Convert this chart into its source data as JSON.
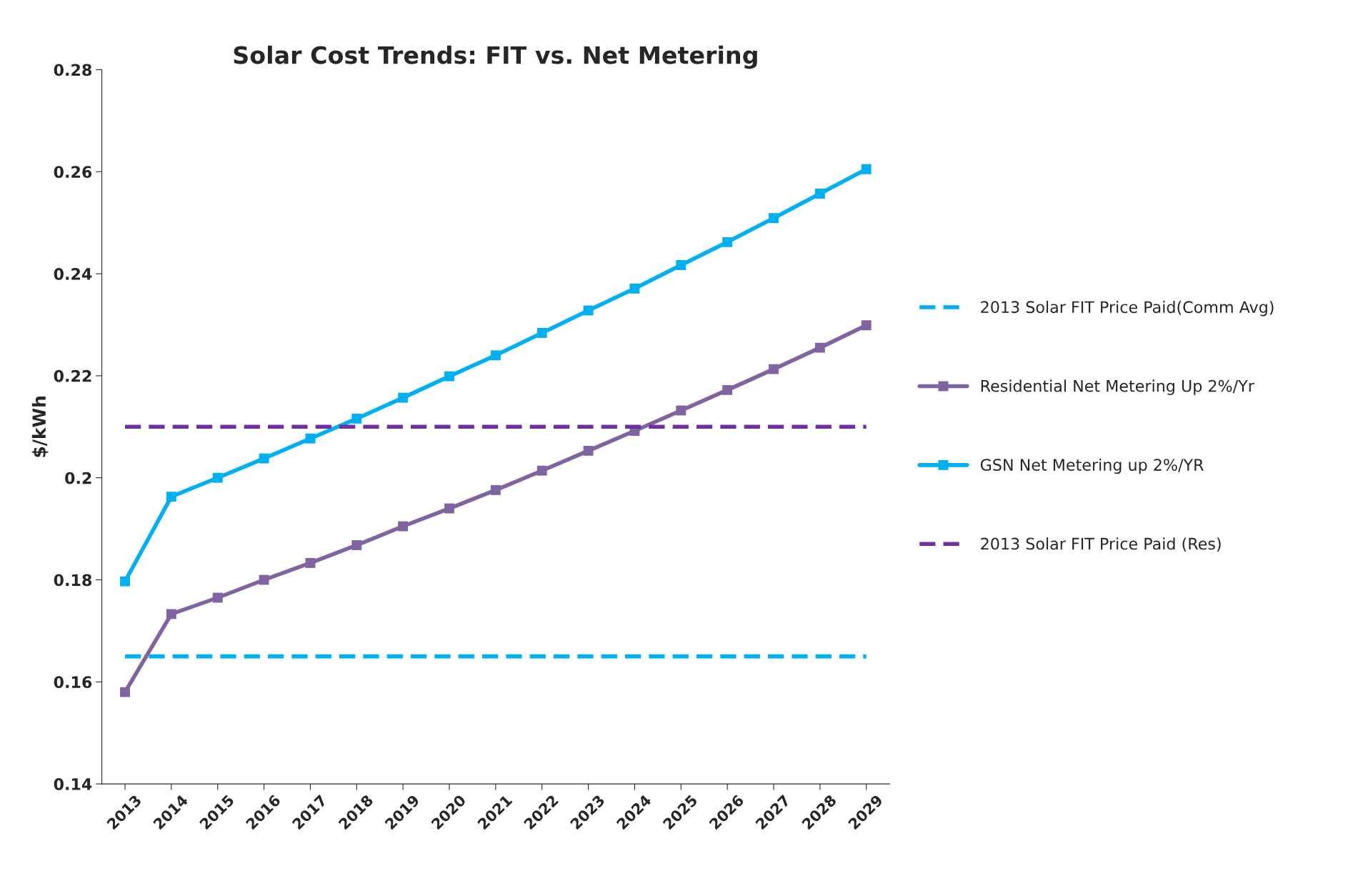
{
  "chart_data": {
    "type": "line",
    "title": "Solar Cost Trends: FIT vs. Net Metering",
    "ylabel": "$/kWh",
    "categories": [
      "2013",
      "2014",
      "2015",
      "2016",
      "2017",
      "2018",
      "2019",
      "2020",
      "2021",
      "2022",
      "2023",
      "2024",
      "2025",
      "2026",
      "2027",
      "2028",
      "2029"
    ],
    "ylim": [
      0.14,
      0.28
    ],
    "yticks": [
      0.14,
      0.16,
      0.18,
      0.2,
      0.22,
      0.24,
      0.26,
      0.28
    ],
    "grid": false,
    "legend": "right",
    "series": [
      {
        "name": "2013 Solar FIT Price Paid(Comm Avg)",
        "color": "#00b0f0",
        "line_style": "dashed",
        "marker": "none",
        "values": [
          0.165,
          0.165,
          0.165,
          0.165,
          0.165,
          0.165,
          0.165,
          0.165,
          0.165,
          0.165,
          0.165,
          0.165,
          0.165,
          0.165,
          0.165,
          0.165,
          0.165
        ]
      },
      {
        "name": "Residential Net Metering Up 2%/Yr",
        "color": "#8064a2",
        "line_style": "solid",
        "marker": "square",
        "values": [
          0.158,
          0.1733,
          0.1765,
          0.18,
          0.1833,
          0.1868,
          0.1905,
          0.194,
          0.1976,
          0.2014,
          0.2053,
          0.2092,
          0.2132,
          0.2172,
          0.2213,
          0.2255,
          0.2299
        ]
      },
      {
        "name": "GSN Net Metering up 2%/YR",
        "color": "#00b0f0",
        "line_style": "solid",
        "marker": "square",
        "values": [
          0.1797,
          0.1963,
          0.2,
          0.2038,
          0.2077,
          0.2116,
          0.2157,
          0.2199,
          0.224,
          0.2284,
          0.2328,
          0.2371,
          0.2417,
          0.2462,
          0.2509,
          0.2557,
          0.2605
        ]
      },
      {
        "name": "2013 Solar FIT Price Paid (Res)",
        "color": "#7030a0",
        "line_style": "dashed",
        "marker": "none",
        "values": [
          0.21,
          0.21,
          0.21,
          0.21,
          0.21,
          0.21,
          0.21,
          0.21,
          0.21,
          0.21,
          0.21,
          0.21,
          0.21,
          0.21,
          0.21,
          0.21,
          0.21
        ]
      }
    ]
  }
}
